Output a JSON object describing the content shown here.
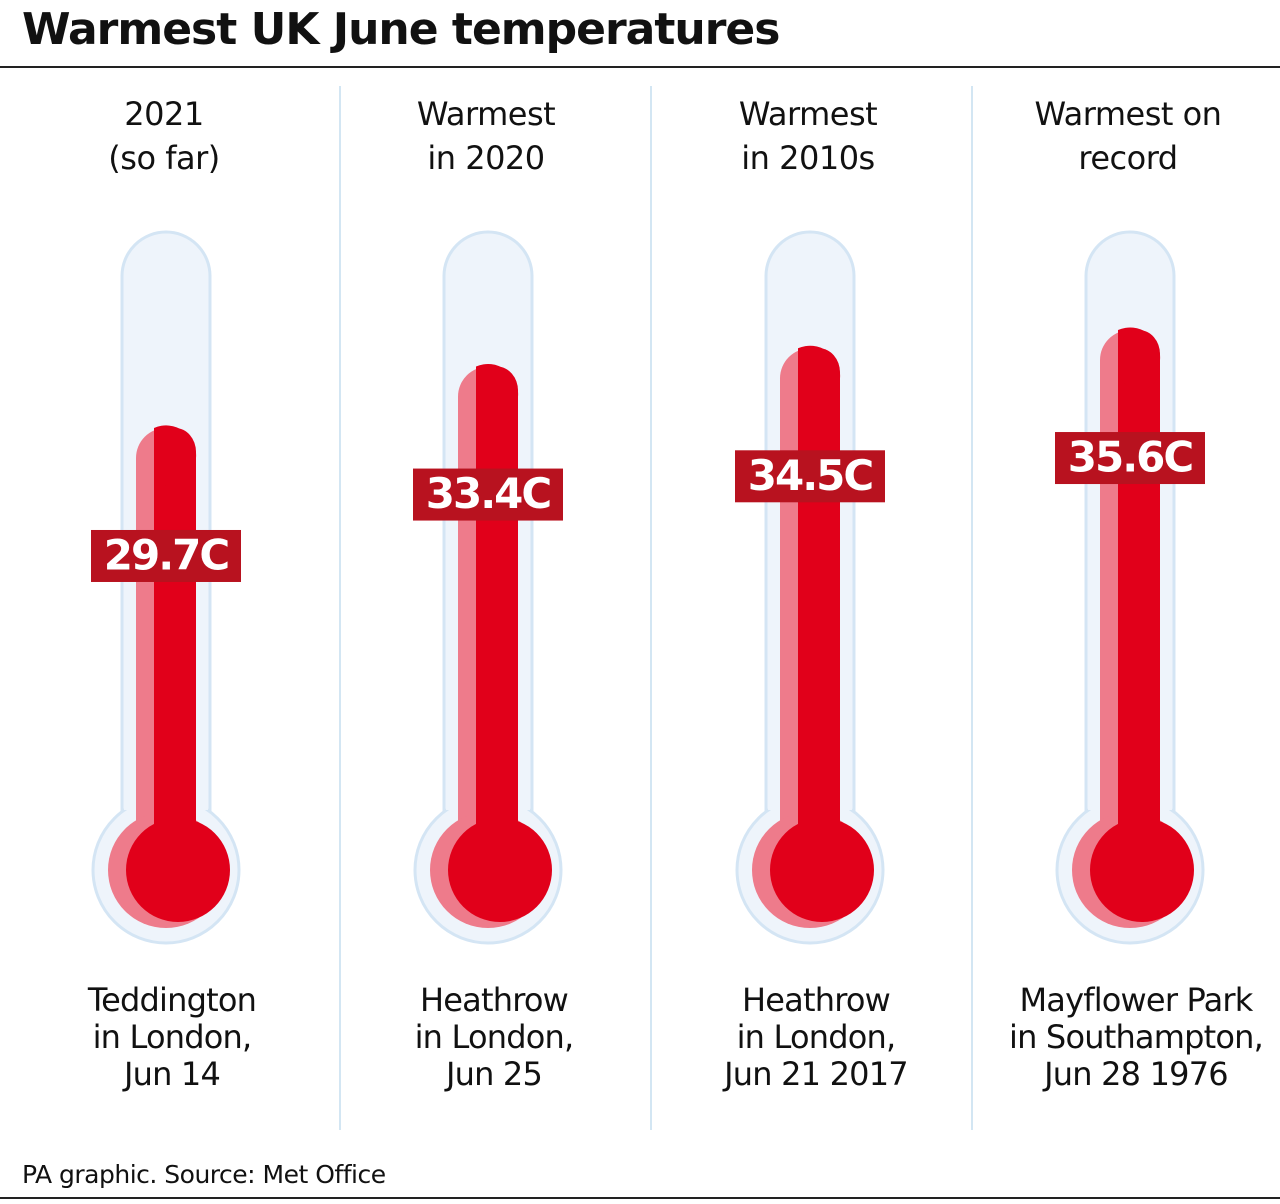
{
  "chart_data": {
    "type": "thermometer",
    "title": "Warmest UK June temperatures",
    "categories": [
      [
        "2021",
        "(so far)"
      ],
      [
        "Warmest",
        "in 2020"
      ],
      [
        "Warmest",
        "in 2010s"
      ],
      [
        "Warmest on",
        "record"
      ]
    ],
    "values": [
      29.7,
      33.4,
      34.5,
      35.6
    ],
    "value_labels": [
      "29.7C",
      "33.4C",
      "34.5C",
      "35.6C"
    ],
    "captions": [
      [
        "Teddington",
        "in London,",
        "Jun 14"
      ],
      [
        "Heathrow",
        "in London,",
        "Jun 25"
      ],
      [
        "Heathrow",
        "in London,",
        "Jun 21 2017"
      ],
      [
        "Mayflower Park",
        "in Southampton,",
        "Jun 28 1976"
      ]
    ],
    "ylim": [
      0,
      40
    ],
    "color": "#e1001a",
    "source": "PA graphic. Source: Met Office"
  }
}
